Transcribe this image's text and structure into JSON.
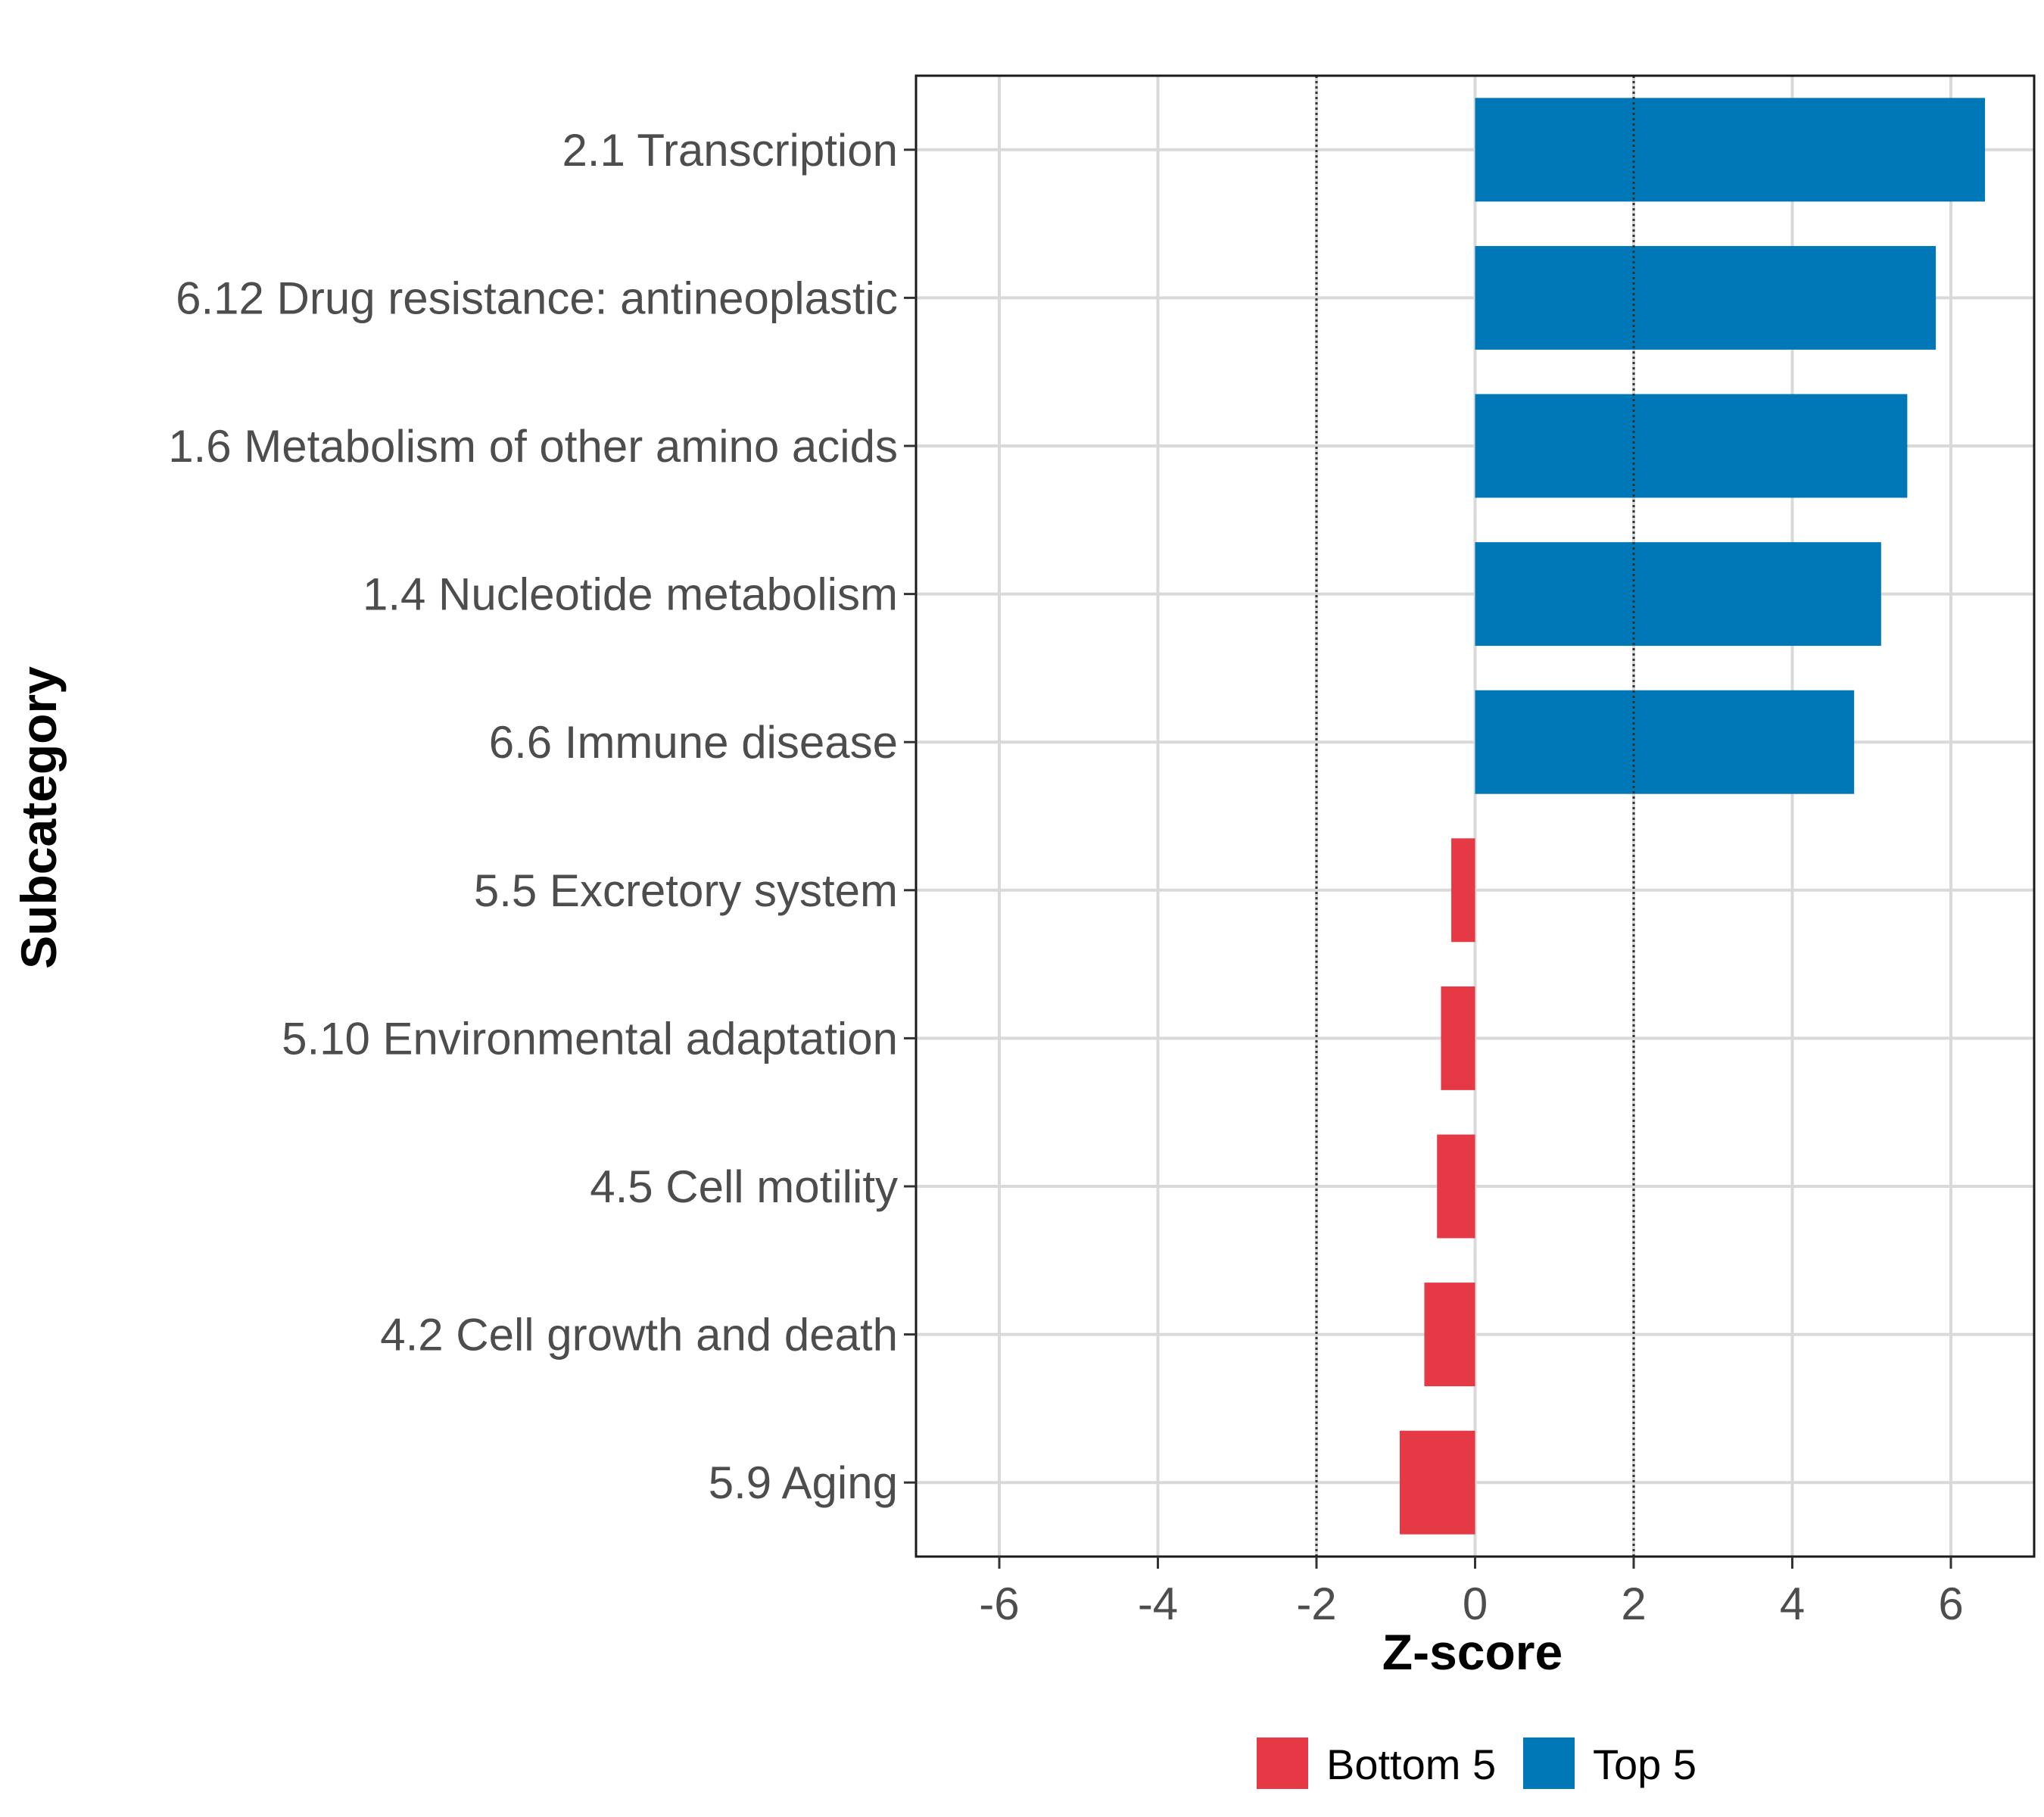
{
  "chart_data": {
    "type": "bar",
    "orientation": "horizontal",
    "title": "",
    "xlabel": "Z-score",
    "ylabel": "Subcategory",
    "xlim": [
      -7.05,
      7.05
    ],
    "x_ticks": [
      -6,
      -4,
      -2,
      0,
      2,
      4,
      6
    ],
    "reference_lines": [
      -2,
      2
    ],
    "grid": true,
    "legend_position": "bottom",
    "categories": [
      "2.1 Transcription",
      "6.12 Drug resistance: antineoplastic",
      "1.6 Metabolism of other amino acids",
      "1.4 Nucleotide metabolism",
      "6.6 Immune disease",
      "5.5 Excretory system",
      "5.10 Environmental adaptation",
      "4.5 Cell motility",
      "4.2 Cell growth and death",
      "5.9 Aging"
    ],
    "values": [
      6.43,
      5.81,
      5.45,
      5.12,
      4.78,
      -0.3,
      -0.43,
      -0.48,
      -0.64,
      -0.95
    ],
    "groups": [
      "Top 5",
      "Top 5",
      "Top 5",
      "Top 5",
      "Top 5",
      "Bottom 5",
      "Bottom 5",
      "Bottom 5",
      "Bottom 5",
      "Bottom 5"
    ],
    "legend": [
      {
        "name": "Bottom 5",
        "color": "#e63946"
      },
      {
        "name": "Top 5",
        "color": "#0077b6"
      }
    ]
  }
}
